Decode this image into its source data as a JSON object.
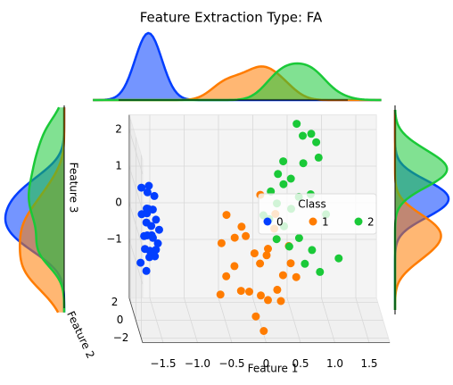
{
  "chart_data": {
    "type": "scatter3d",
    "title": "Feature Extraction Type: FA",
    "xlabel": "Feature 1",
    "ylabel": "Feature 2",
    "zlabel": "Feature 3",
    "legend_title": "Class",
    "legend_loc": "right",
    "grid": true,
    "xlim": [
      -1.8,
      1.8
    ],
    "ylim": [
      -2.5,
      2.5
    ],
    "zlim": [
      -2.6,
      2.4
    ],
    "xticks": [
      {
        "value": -1.5,
        "label": "−1.5"
      },
      {
        "value": -1,
        "label": "−1.0"
      },
      {
        "value": -0.5,
        "label": "−0.5"
      },
      0,
      0.5,
      {
        "value": 1,
        "label": "1.0"
      },
      1.5
    ],
    "yticks": [
      {
        "value": -2,
        "label": "−2"
      },
      0,
      2
    ],
    "zticks": [
      {
        "value": -1,
        "label": "−1"
      },
      0,
      1,
      2
    ],
    "series": [
      {
        "name": "0",
        "color": "#023eff",
        "x": [
          -1.7,
          -1.6,
          -1.5,
          -1.65,
          -1.55,
          -1.6,
          -1.7,
          -1.5,
          -1.58,
          -1.62,
          -1.45,
          -1.68,
          -1.55,
          -1.6,
          -1.52,
          -1.66,
          -1.58,
          -1.6,
          -1.5,
          -1.72,
          -1.56,
          -1.62,
          -1.48,
          -1.6,
          -1.64
        ],
        "y": [
          0.5,
          0.3,
          0.8,
          -0.2,
          0.1,
          0.6,
          0.4,
          0.2,
          -0.1,
          0.7,
          0.3,
          0.0,
          0.5,
          0.9,
          -0.3,
          0.2,
          0.4,
          0.1,
          0.6,
          0.3,
          -0.2,
          0.5,
          0.0,
          0.8,
          0.2
        ],
        "z": [
          0.9,
          1.0,
          0.6,
          0.5,
          0.4,
          0.3,
          0.2,
          0.1,
          0.0,
          -0.1,
          -0.2,
          -0.3,
          -0.4,
          -0.5,
          -0.6,
          -0.7,
          -0.8,
          -0.9,
          -1.0,
          -1.1,
          -0.3,
          0.2,
          -0.5,
          0.7,
          -1.3
        ]
      },
      {
        "name": "1",
        "color": "#ff7c00",
        "x": [
          -0.5,
          -0.3,
          0.0,
          0.2,
          -0.6,
          -0.2,
          0.1,
          0.4,
          -0.4,
          0.0,
          0.3,
          -0.1,
          -0.5,
          0.2,
          -0.3,
          0.1,
          0.5,
          -0.2,
          0.0,
          0.3,
          -0.4,
          0.1,
          -0.1,
          0.2,
          0.4,
          -0.6,
          0.0
        ],
        "y": [
          -0.5,
          -1.0,
          -0.3,
          -0.8,
          -1.2,
          0.0,
          -0.6,
          -1.4,
          -0.9,
          -0.2,
          -1.1,
          -0.7,
          -0.4,
          -1.5,
          -0.8,
          -0.1,
          -0.9,
          -1.3,
          -0.5,
          -0.3,
          -1.0,
          -0.6,
          -1.2,
          -0.4,
          -0.7,
          -0.8,
          -1.6
        ],
        "z": [
          0.4,
          0.2,
          0.9,
          0.5,
          -0.2,
          -0.3,
          -0.5,
          -0.7,
          -0.9,
          -1.0,
          -1.1,
          -0.6,
          -1.3,
          -1.4,
          -1.6,
          -0.8,
          -1.2,
          -1.5,
          -1.8,
          -2.0,
          -0.1,
          -1.9,
          -2.2,
          0.0,
          -0.4,
          -1.7,
          -2.5
        ]
      },
      {
        "name": "2",
        "color": "#1ac938",
        "x": [
          0.6,
          0.8,
          0.7,
          0.9,
          0.4,
          0.3,
          0.5,
          0.7,
          0.2,
          0.4,
          0.6,
          0.9,
          0.3,
          0.5,
          0.8,
          1.0,
          0.2,
          0.4,
          0.6,
          0.3,
          0.8,
          1.2,
          0.5,
          0.7,
          0.9,
          0.1
        ],
        "y": [
          1.5,
          1.2,
          1.8,
          1.0,
          1.4,
          0.8,
          1.1,
          1.6,
          0.9,
          1.3,
          0.7,
          1.9,
          1.2,
          1.0,
          1.4,
          0.8,
          1.5,
          1.1,
          0.6,
          1.3,
          0.9,
          1.2,
          1.7,
          1.0,
          0.5,
          1.1
        ],
        "z": [
          2.4,
          2.2,
          2.0,
          1.6,
          1.4,
          1.2,
          1.0,
          1.3,
          0.7,
          0.8,
          0.6,
          1.8,
          0.3,
          0.2,
          0.5,
          0.1,
          -0.2,
          -0.3,
          -0.5,
          -0.7,
          -0.9,
          -1.2,
          -1.0,
          -1.3,
          -1.4,
          0.0
        ]
      }
    ]
  }
}
